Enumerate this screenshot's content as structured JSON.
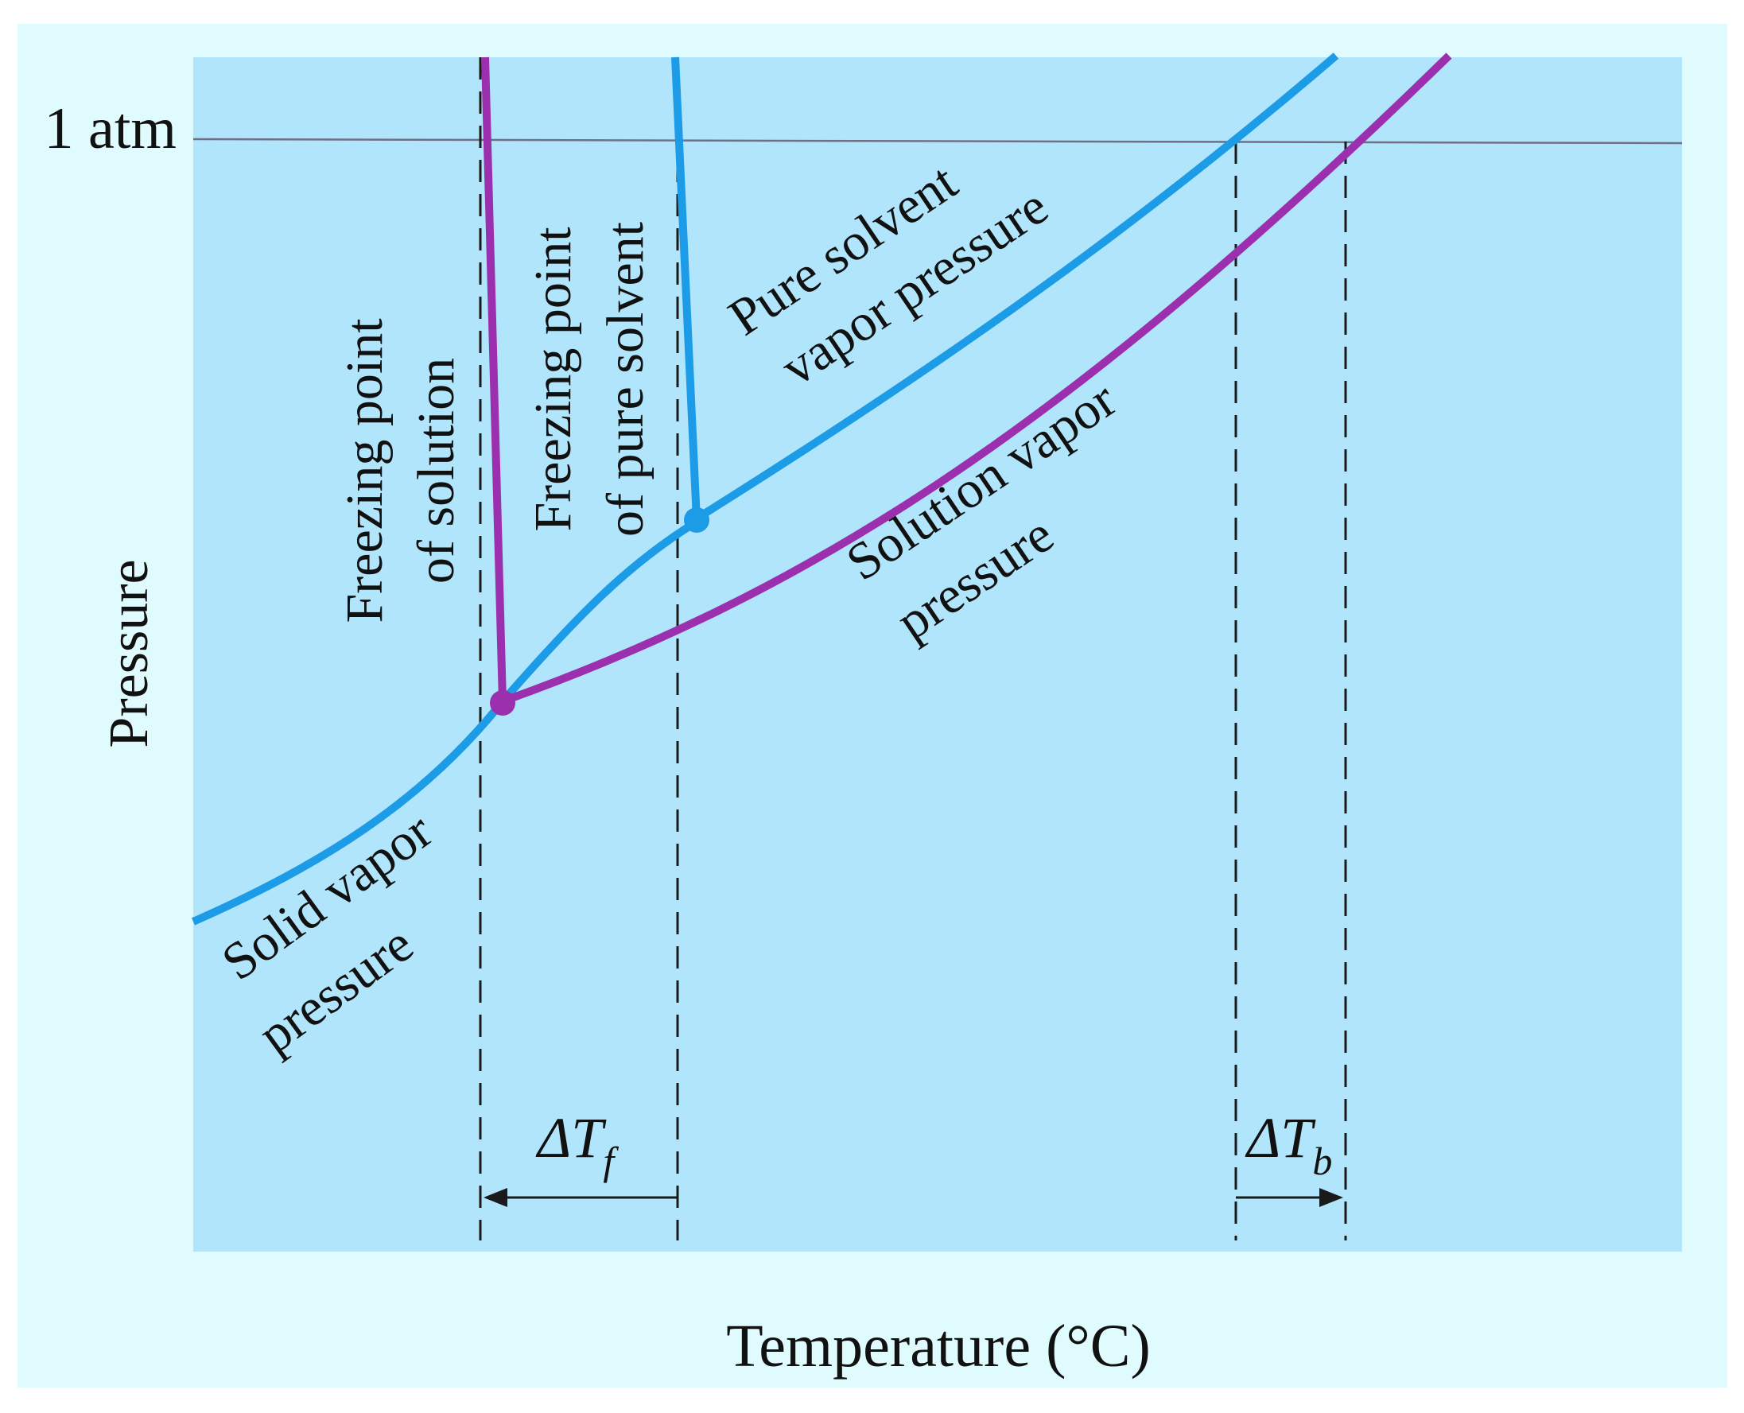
{
  "labels": {
    "one_atm": "1 atm",
    "y_axis": "Pressure",
    "x_axis": "Temperature (°C)",
    "freezing_solution_line1": "Freezing point",
    "freezing_solution_line2": "of solution",
    "freezing_pure_line1": "Freezing point",
    "freezing_pure_line2": "of pure solvent",
    "pure_vapor_line1": "Pure solvent",
    "pure_vapor_line2": "vapor pressure",
    "solution_vapor_line1": "Solution vapor",
    "solution_vapor_line2": "pressure",
    "solid_vapor_line1": "Solid vapor",
    "solid_vapor_line2": "pressure",
    "delta": "ΔT",
    "sub_f": "f",
    "sub_b": "b"
  },
  "colors": {
    "outer_background": "#e0fbfd",
    "plot_background": "#b1e5fb",
    "pure_solvent_curve": "#1c9be6",
    "solution_curve": "#9b2fad",
    "reference_line": "#6f6f86",
    "dashed_lines": "#1a1a1a"
  }
}
